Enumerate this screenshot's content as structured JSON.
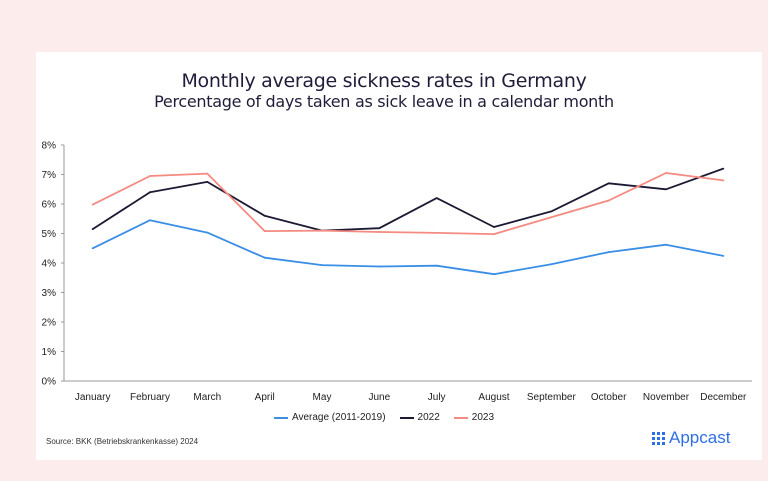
{
  "header": {
    "title": "Monthly average sickness rates in Germany",
    "subtitle": "Percentage of days taken as sick leave in a calendar month"
  },
  "footer": {
    "source": "Source: BKK (Betriebskrankenkasse) 2024",
    "logo_text": "Appcast"
  },
  "chart_data": {
    "type": "line",
    "title": "Monthly average sickness rates in Germany",
    "subtitle": "Percentage of days taken as sick leave in a calendar month",
    "xlabel": "",
    "ylabel": "",
    "categories": [
      "January",
      "February",
      "March",
      "April",
      "May",
      "June",
      "July",
      "August",
      "September",
      "October",
      "November",
      "December"
    ],
    "ylim": [
      0,
      8
    ],
    "yticks": [
      0,
      1,
      2,
      3,
      4,
      5,
      6,
      7,
      8
    ],
    "ytick_labels": [
      "0%",
      "1%",
      "2%",
      "3%",
      "4%",
      "5%",
      "6%",
      "7%",
      "8%"
    ],
    "grid": false,
    "legend_position": "bottom",
    "series": [
      {
        "name": "Average (2011-2019)",
        "color": "#3a8ee6",
        "values": [
          4.5,
          5.45,
          5.03,
          4.18,
          3.93,
          3.88,
          3.91,
          3.62,
          3.96,
          4.37,
          4.62,
          4.24
        ]
      },
      {
        "name": "2022",
        "color": "#1c1a33",
        "values": [
          5.15,
          6.4,
          6.75,
          5.6,
          5.1,
          5.18,
          6.2,
          5.22,
          5.75,
          6.7,
          6.5,
          7.2
        ]
      },
      {
        "name": "2023",
        "color": "#f48a80",
        "values": [
          5.98,
          6.95,
          7.03,
          5.08,
          5.1,
          5.05,
          5.02,
          4.98,
          5.55,
          6.12,
          7.05,
          6.8
        ]
      }
    ]
  }
}
